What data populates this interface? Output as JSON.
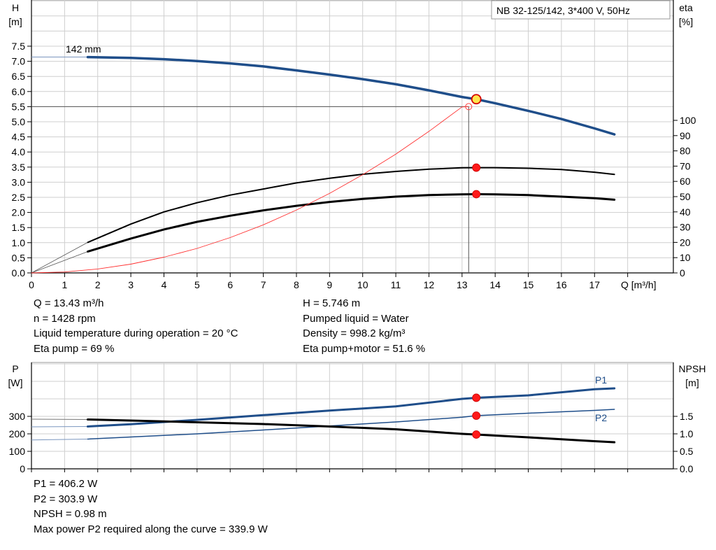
{
  "model_label": "NB 32-125/142, 3*400 V, 50Hz",
  "top_info": {
    "left": [
      "Q = 13.43 m³/h",
      "n = 1428 rpm",
      "Liquid temperature during operation = 20 °C",
      "Eta pump = 69 %"
    ],
    "right": [
      "H = 5.746 m",
      "Pumped liquid = Water",
      "Density = 998.2 kg/m³",
      "Eta pump+motor = 51.6 %"
    ]
  },
  "bottom_info": [
    "P1 = 406.2 W",
    "P2 = 303.9 W",
    "NPSH = 0.98 m",
    "Max power P2 required along the curve = 339.9 W"
  ],
  "chart_data": [
    {
      "type": "line",
      "title": "",
      "xlabel": "Q [m³/h]",
      "ylabel": "H\n[m]",
      "y2label": "eta\n[%]",
      "xlim": [
        0,
        19
      ],
      "ylim": [
        0,
        7.5
      ],
      "y2lim": [
        0,
        100
      ],
      "x_ticks": [
        0,
        1,
        2,
        3,
        4,
        5,
        6,
        7,
        8,
        9,
        10,
        11,
        12,
        13,
        14,
        15,
        16,
        17
      ],
      "y_ticks": [
        "0.0",
        "0.5",
        "1.0",
        "1.5",
        "2.0",
        "2.5",
        "3.0",
        "3.5",
        "4.0",
        "4.5",
        "5.0",
        "5.5",
        "6.0",
        "6.5",
        "7.0",
        "7.5"
      ],
      "y2_ticks": [
        0,
        10,
        20,
        30,
        40,
        50,
        60,
        70,
        80,
        90,
        100
      ],
      "grid": true,
      "annotations": [
        "142 mm"
      ],
      "series": [
        {
          "id": "head",
          "axis": "left",
          "color": "#1f4e8a",
          "width": 3.5,
          "x": [
            0,
            1.7,
            3,
            4,
            5,
            6,
            7,
            8,
            9,
            10,
            11,
            12,
            13,
            13.43,
            14,
            15,
            16,
            17,
            17.6
          ],
          "y": [
            7.14,
            7.14,
            7.11,
            7.07,
            7.01,
            6.93,
            6.83,
            6.7,
            6.56,
            6.41,
            6.24,
            6.04,
            5.82,
            5.746,
            5.61,
            5.36,
            5.09,
            4.78,
            4.58
          ]
        },
        {
          "id": "eta_pump",
          "axis": "right",
          "color": "#000000",
          "width": 2,
          "x": [
            0,
            1.7,
            3,
            4,
            5,
            6,
            7,
            8,
            9,
            10,
            11,
            12,
            13,
            13.43,
            14,
            15,
            16,
            17,
            17.6
          ],
          "y": [
            0,
            20,
            32,
            40,
            46,
            51,
            55,
            59,
            62,
            64.7,
            66.5,
            68,
            68.9,
            69,
            69,
            68.6,
            67.8,
            66,
            64.6
          ]
        },
        {
          "id": "eta_total",
          "axis": "right",
          "color": "#000000",
          "width": 3,
          "x": [
            0,
            1.7,
            3,
            4,
            5,
            6,
            7,
            8,
            9,
            10,
            11,
            12,
            13,
            13.43,
            14,
            15,
            16,
            17,
            17.6
          ],
          "y": [
            0,
            14,
            22.5,
            28.5,
            33.5,
            37.5,
            41,
            44,
            46.5,
            48.5,
            50,
            51,
            51.5,
            51.6,
            51.5,
            51,
            50,
            49,
            48
          ]
        },
        {
          "id": "system",
          "axis": "left",
          "color": "#ff3030",
          "width": 0.9,
          "x": [
            0,
            1,
            2,
            3,
            4,
            5,
            6,
            7,
            8,
            9,
            10,
            11,
            12,
            13,
            13.2
          ],
          "y": [
            0,
            0.03,
            0.13,
            0.29,
            0.52,
            0.81,
            1.17,
            1.59,
            2.08,
            2.63,
            3.25,
            3.93,
            4.68,
            5.49,
            5.5
          ]
        }
      ],
      "operating_points": [
        {
          "axis": "left",
          "x": 13.43,
          "y": 5.746,
          "style": "yellow"
        },
        {
          "axis": "right",
          "x": 13.43,
          "y": 69,
          "style": "red"
        },
        {
          "axis": "right",
          "x": 13.43,
          "y": 51.6,
          "style": "red"
        },
        {
          "axis": "left",
          "x": 13.2,
          "y": 5.5,
          "style": "hollow"
        }
      ],
      "guide_lines": {
        "h": 5.5,
        "v": 13.2
      }
    },
    {
      "type": "line",
      "title": "",
      "xlabel": "",
      "ylabel": "P\n[W]",
      "y2label": "NPSH\n[m]",
      "xlim": [
        0,
        19
      ],
      "ylim": [
        0,
        500
      ],
      "y2lim": [
        0,
        2.5
      ],
      "y_ticks": [
        0,
        100,
        200,
        300
      ],
      "y2_ticks": [
        "0.0",
        "0.5",
        "1.0",
        "1.5"
      ],
      "grid": true,
      "series": [
        {
          "id": "P1",
          "name": "P1",
          "axis": "left",
          "color": "#1f4e8a",
          "width": 3,
          "x": [
            0,
            1.7,
            3,
            5,
            7,
            9,
            11,
            13,
            13.43,
            15,
            17,
            17.6
          ],
          "y": [
            240,
            242,
            255,
            280,
            307,
            333,
            357,
            400,
            406.2,
            420,
            455,
            460
          ]
        },
        {
          "id": "P2",
          "name": "P2",
          "axis": "left",
          "color": "#1f4e8a",
          "width": 1.5,
          "x": [
            0,
            1.7,
            3,
            5,
            7,
            9,
            11,
            13,
            13.43,
            15,
            17,
            17.6
          ],
          "y": [
            165,
            170,
            182,
            200,
            222,
            245,
            268,
            295,
            303.9,
            318,
            334,
            339.9
          ]
        },
        {
          "id": "NPSH",
          "axis": "right",
          "color": "#000000",
          "width": 3,
          "x": [
            0,
            1.7,
            3,
            5,
            7,
            9,
            11,
            13,
            13.43,
            15,
            17,
            17.6
          ],
          "y": [
            1.42,
            1.41,
            1.38,
            1.33,
            1.28,
            1.21,
            1.13,
            1.0,
            0.98,
            0.9,
            0.79,
            0.76
          ]
        }
      ],
      "operating_points": [
        {
          "axis": "left",
          "x": 13.43,
          "y": 406.2,
          "style": "red"
        },
        {
          "axis": "left",
          "x": 13.43,
          "y": 303.9,
          "style": "red"
        },
        {
          "axis": "right",
          "x": 13.43,
          "y": 0.98,
          "style": "red"
        }
      ]
    }
  ]
}
